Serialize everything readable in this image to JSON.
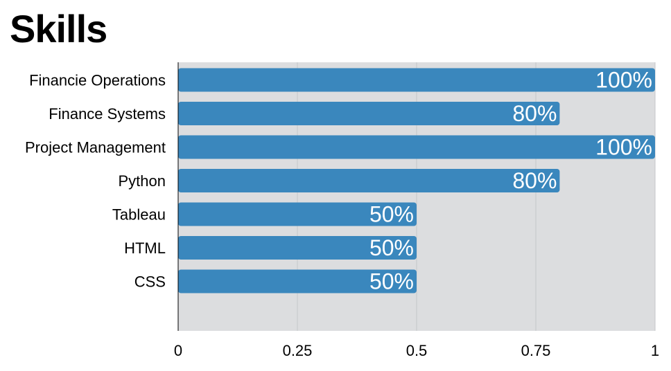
{
  "page": {
    "title": "Skills"
  },
  "colors": {
    "bar": "#3a87bd",
    "plot_bg": "#dcdddf",
    "grid": "#c4c6c9",
    "axis": "#000000"
  },
  "chart_data": {
    "type": "bar",
    "orientation": "horizontal",
    "title": "Skills",
    "categories": [
      "Financie Operations",
      "Finance Systems",
      "Project Management",
      "Python",
      "Tableau",
      "HTML",
      "CSS"
    ],
    "values": [
      1.0,
      0.8,
      1.0,
      0.8,
      0.5,
      0.5,
      0.5
    ],
    "data_labels": [
      "100%",
      "80%",
      "100%",
      "80%",
      "50%",
      "50%",
      "50%"
    ],
    "xlim": [
      0,
      1
    ],
    "xticks": [
      0,
      0.25,
      0.5,
      0.75,
      1
    ],
    "xtick_labels": [
      "0",
      "0.25",
      "0.5",
      "0.75",
      "1"
    ],
    "grid": true,
    "xlabel": "",
    "ylabel": ""
  }
}
